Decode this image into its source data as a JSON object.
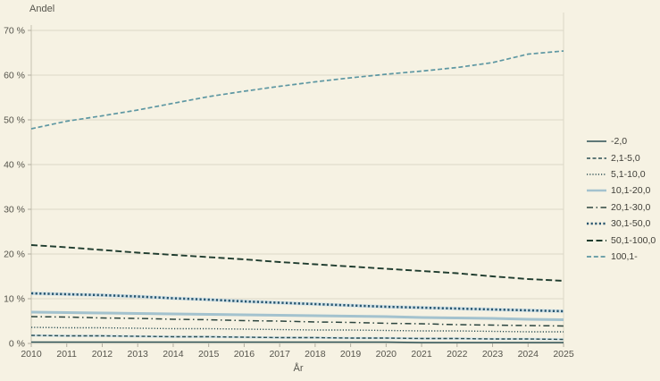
{
  "chart_data": {
    "type": "line",
    "title": "",
    "ylabel": "Andel",
    "xlabel": "År",
    "ylim": [
      0,
      70
    ],
    "y_ticks": [
      0,
      10,
      20,
      30,
      40,
      50,
      60,
      70
    ],
    "y_tick_suffix": " %",
    "grid": "horizontal",
    "legend_position": "right",
    "x": [
      2010,
      2011,
      2012,
      2013,
      2014,
      2015,
      2016,
      2017,
      2018,
      2019,
      2020,
      2021,
      2022,
      2023,
      2024,
      2025
    ],
    "series": [
      {
        "name": "-2,0",
        "color": "#2d5054",
        "width": 1.4,
        "dash": "",
        "halo": false,
        "values": [
          0.3,
          0.3,
          0.3,
          0.3,
          0.3,
          0.3,
          0.3,
          0.3,
          0.3,
          0.3,
          0.3,
          0.2,
          0.2,
          0.2,
          0.2,
          0.2
        ]
      },
      {
        "name": "2,1-5,0",
        "color": "#2d5054",
        "width": 1.4,
        "dash": "4,2.5",
        "halo": true,
        "values": [
          1.8,
          1.7,
          1.7,
          1.6,
          1.5,
          1.5,
          1.4,
          1.3,
          1.3,
          1.2,
          1.2,
          1.1,
          1.1,
          1.0,
          1.0,
          0.9
        ]
      },
      {
        "name": "5,1-10,0",
        "color": "#2d5054",
        "width": 1.4,
        "dash": "1.2,2",
        "halo": false,
        "values": [
          3.6,
          3.5,
          3.5,
          3.4,
          3.3,
          3.3,
          3.2,
          3.1,
          3.0,
          3.0,
          2.9,
          2.8,
          2.8,
          2.7,
          2.6,
          2.6
        ]
      },
      {
        "name": "10,1-20,0",
        "color": "#a3c2ce",
        "width": 3.0,
        "dash": "",
        "halo": false,
        "values": [
          7.0,
          6.9,
          6.8,
          6.7,
          6.6,
          6.5,
          6.4,
          6.3,
          6.2,
          6.1,
          6.0,
          5.8,
          5.7,
          5.6,
          5.4,
          5.3
        ]
      },
      {
        "name": "20,1-30,0",
        "color": "#2b443e",
        "width": 1.5,
        "dash": "7,3.5,1.5,3.5",
        "halo": false,
        "values": [
          6.0,
          5.9,
          5.7,
          5.6,
          5.4,
          5.3,
          5.1,
          5.0,
          4.8,
          4.7,
          4.5,
          4.4,
          4.2,
          4.1,
          4.0,
          3.9
        ]
      },
      {
        "name": "30,1-50,0",
        "color": "#27556e",
        "width": 2.5,
        "dash": "2.2,2.4",
        "halo": true,
        "values": [
          11.2,
          11.0,
          10.8,
          10.5,
          10.1,
          9.8,
          9.4,
          9.1,
          8.8,
          8.5,
          8.2,
          8.0,
          7.8,
          7.6,
          7.4,
          7.2
        ]
      },
      {
        "name": "50,1-100,0",
        "color": "#1f3c2e",
        "width": 1.9,
        "dash": "7,3.5",
        "halo": false,
        "values": [
          22.0,
          21.5,
          20.9,
          20.3,
          19.8,
          19.3,
          18.8,
          18.2,
          17.7,
          17.2,
          16.7,
          16.2,
          15.7,
          15.0,
          14.4,
          14.0
        ]
      },
      {
        "name": "100,1-",
        "color": "#5d97a2",
        "width": 1.7,
        "dash": "5,2.8",
        "halo": false,
        "values": [
          48.0,
          49.7,
          50.9,
          52.2,
          53.7,
          55.2,
          56.4,
          57.5,
          58.5,
          59.4,
          60.2,
          60.9,
          61.7,
          62.8,
          64.7,
          65.4
        ]
      }
    ],
    "colors": {
      "background": "#f6f2e3",
      "gridline": "#dcd8c7",
      "axis_line": "#c6c2b2",
      "tick_mark": "#b2aea0",
      "text": "#55544c",
      "halo": "#cfe0e6"
    }
  }
}
